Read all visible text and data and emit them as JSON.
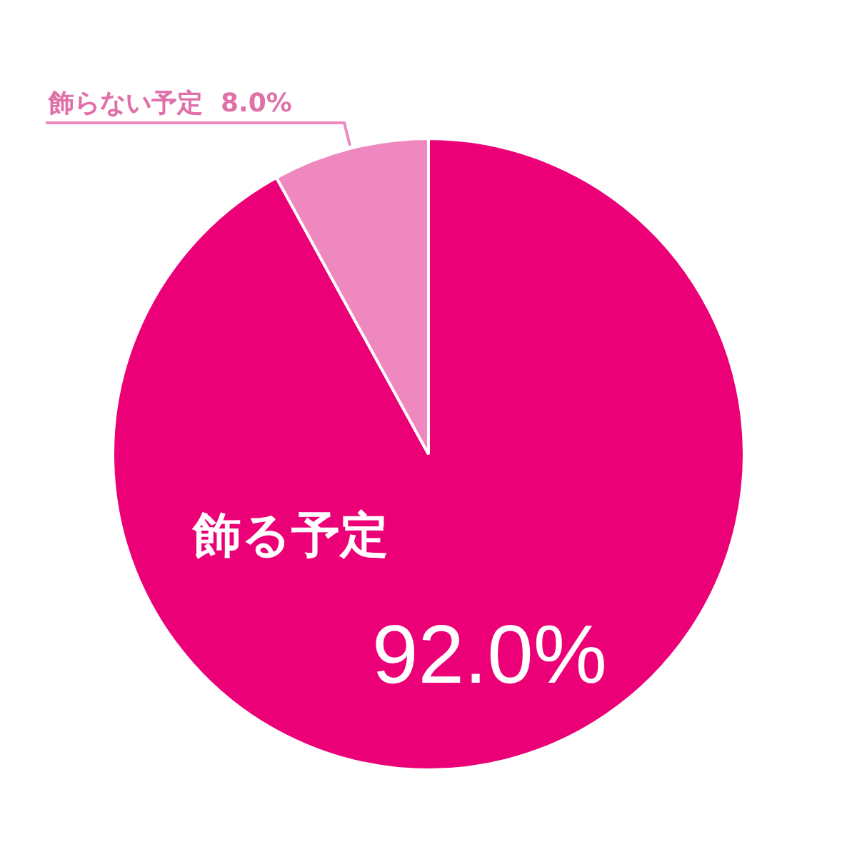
{
  "chart_data": {
    "type": "pie",
    "categories": [
      "飾る予定",
      "飾らない予定"
    ],
    "values": [
      92.0,
      8.0
    ],
    "colors": [
      "#ec0078",
      "#f088c0"
    ],
    "value_labels": [
      "92.0%",
      "8.0%"
    ],
    "legend": false
  }
}
